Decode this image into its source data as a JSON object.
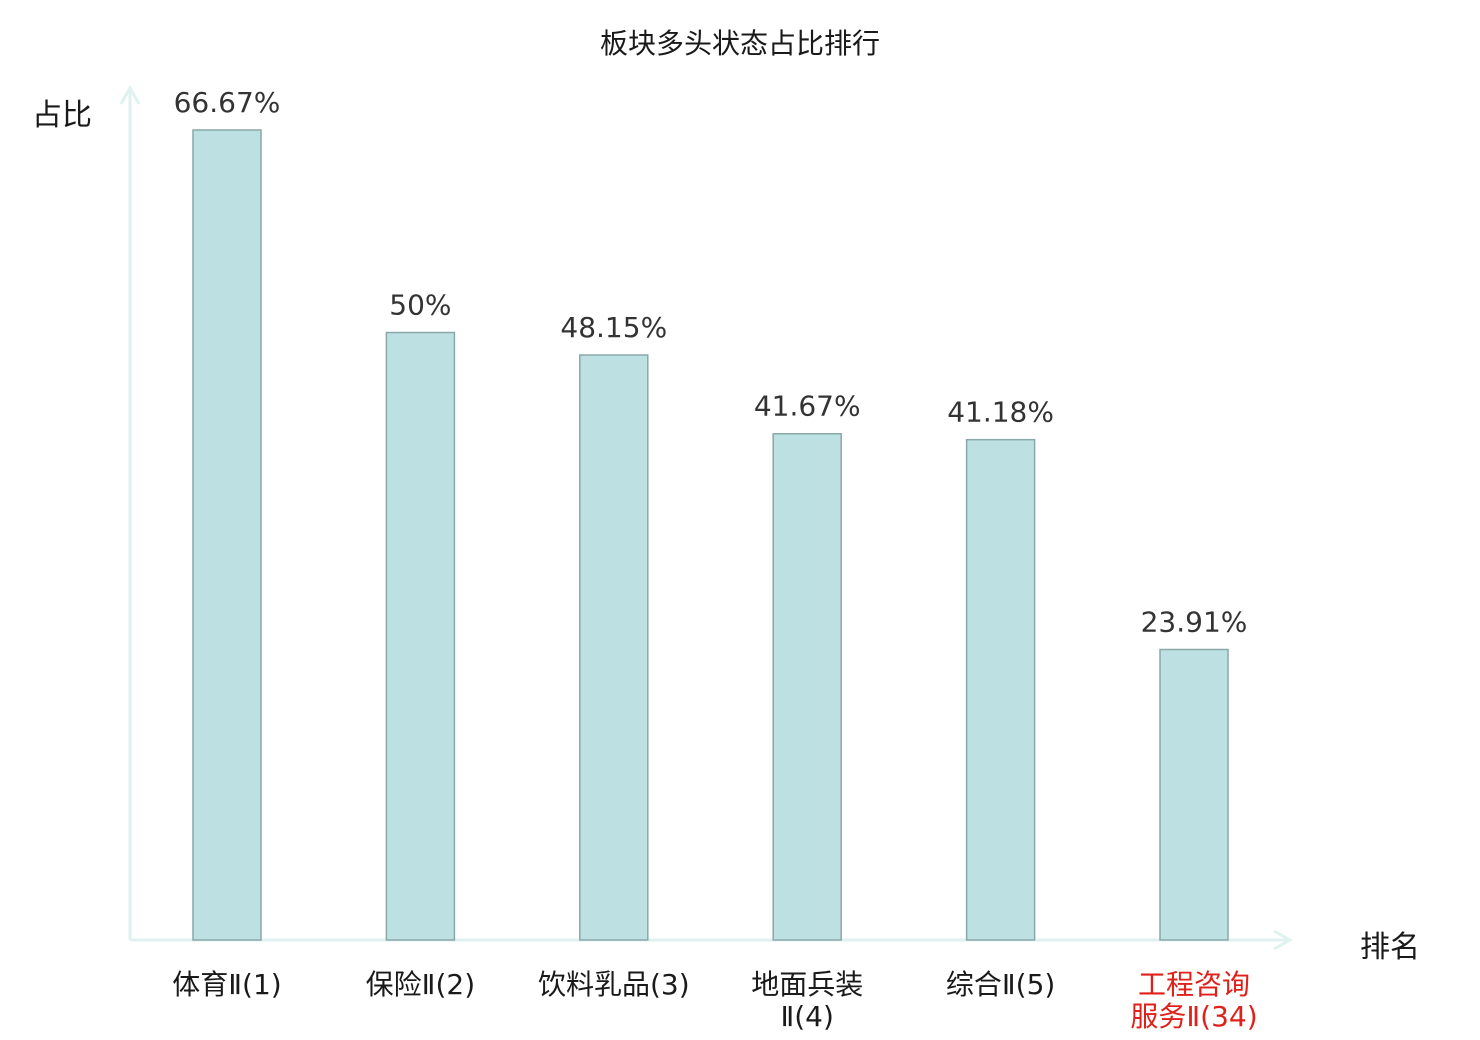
{
  "chart_data": {
    "type": "bar",
    "title": "板块多头状态占比排行",
    "ylabel": "占比",
    "xlabel": "排名",
    "ylim": [
      0,
      70
    ],
    "grid": false,
    "categories": [
      [
        "体育Ⅱ(1)"
      ],
      [
        "保险Ⅱ(2)"
      ],
      [
        "饮料乳品(3)"
      ],
      [
        "地面兵装",
        "Ⅱ(4)"
      ],
      [
        "综合Ⅱ(5)"
      ],
      [
        "工程咨询",
        "服务Ⅱ(34)"
      ]
    ],
    "values": [
      66.67,
      50,
      48.15,
      41.67,
      41.18,
      23.91
    ],
    "value_labels": [
      "66.67%",
      "50%",
      "48.15%",
      "41.67%",
      "41.18%",
      "23.91%"
    ],
    "highlight_index": 5
  },
  "colors": {
    "bar_fill": "#bde0e3",
    "bar_stroke": "#8aa8aa",
    "axis": "#e0f2ef",
    "label_text": "#1a1a1a",
    "value_text": "#333333",
    "highlight_text": "#e0201b"
  }
}
